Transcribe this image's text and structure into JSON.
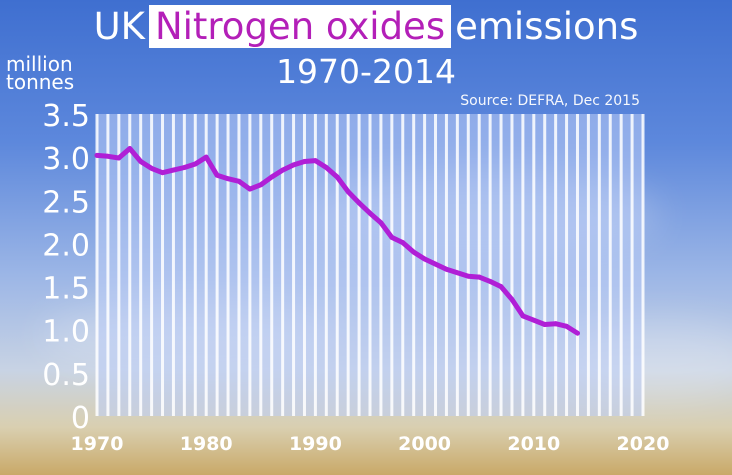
{
  "title": {
    "prefix": "UK",
    "highlight": "Nitrogen oxides",
    "suffix": "emissions",
    "years": "1970-2014"
  },
  "units": [
    "million",
    "tonnes"
  ],
  "source": "Source: DEFRA, Dec 2015",
  "colors": {
    "line": "#b01fd6",
    "plot_bg": "rgba(190,205,245,0.55)",
    "grid": "rgba(255,255,255,0.85)",
    "tick_text": "#ffffff",
    "title_highlight": "#b31fb8"
  },
  "chart_data": {
    "type": "line",
    "title": "UK Nitrogen oxides emissions 1970-2014",
    "ylabel": "million tonnes",
    "xlabel": "",
    "xlim": [
      1970,
      2020
    ],
    "ylim": [
      0,
      3.5
    ],
    "xticks": [
      1970,
      1980,
      1990,
      2000,
      2010,
      2020
    ],
    "yticks": [
      0,
      0.5,
      1.0,
      1.5,
      2.0,
      2.5,
      3.0,
      3.5
    ],
    "ytick_labels": [
      "0",
      "0.5",
      "1.0",
      "1.5",
      "2.0",
      "2.5",
      "3.0",
      "3.5"
    ],
    "grid": "vertical lines each year",
    "series": [
      {
        "x": [
          1970,
          1971,
          1972,
          1973,
          1974,
          1975,
          1976,
          1977,
          1978,
          1979,
          1980,
          1981,
          1982,
          1983,
          1984,
          1985,
          1986,
          1987,
          1988,
          1989,
          1990,
          1991,
          1992,
          1993,
          1994,
          1995,
          1996,
          1997,
          1998,
          1999,
          2000,
          2001,
          2002,
          2003,
          2004,
          2005,
          2006,
          2007,
          2008,
          2009,
          2010,
          2011,
          2012,
          2013,
          2014
        ],
        "values": [
          3.02,
          3.01,
          2.99,
          3.1,
          2.95,
          2.87,
          2.82,
          2.85,
          2.88,
          2.92,
          3.0,
          2.79,
          2.75,
          2.72,
          2.63,
          2.68,
          2.77,
          2.85,
          2.91,
          2.95,
          2.96,
          2.88,
          2.77,
          2.6,
          2.47,
          2.35,
          2.24,
          2.07,
          2.01,
          1.9,
          1.82,
          1.76,
          1.7,
          1.66,
          1.62,
          1.61,
          1.56,
          1.5,
          1.35,
          1.16,
          1.11,
          1.06,
          1.07,
          1.04,
          0.96
        ]
      }
    ]
  }
}
